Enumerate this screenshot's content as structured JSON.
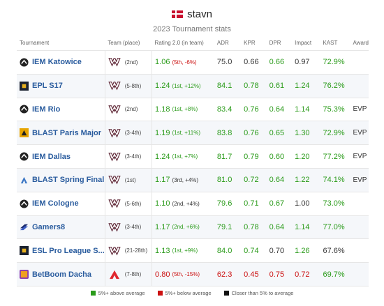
{
  "header": {
    "player": "stavn",
    "subtitle": "2023 Tournament stats",
    "flag_icon": "denmark-flag-icon"
  },
  "columns": [
    "Tournament",
    "Team (place)",
    "Rating 2.0 (in team)",
    "ADR",
    "KPR",
    "DPR",
    "Impact",
    "KAST",
    "Award"
  ],
  "colors": {
    "green": "#2a9b1a",
    "red": "#cc1111",
    "black": "#333333",
    "link": "#2a5c9e"
  },
  "rows": [
    {
      "tournament": "IEM Katowice",
      "icon": "iem-icon",
      "team_logo": "heroic-logo",
      "place": "(2nd)",
      "rating": "1.06",
      "rating_sub": "(5th, -6%)",
      "rating_color": "green",
      "rating_sub_color": "red",
      "adr": "75.0",
      "adr_color": "black",
      "kpr": "0.66",
      "kpr_color": "black",
      "dpr": "0.66",
      "dpr_color": "green",
      "impact": "0.97",
      "impact_color": "black",
      "kast": "72.9%",
      "kast_color": "green",
      "award": ""
    },
    {
      "tournament": "EPL S17",
      "icon": "esl-pro-league-icon",
      "team_logo": "heroic-logo",
      "place": "(5-8th)",
      "rating": "1.24",
      "rating_sub": "(1st, +12%)",
      "rating_color": "green",
      "rating_sub_color": "green",
      "adr": "84.1",
      "adr_color": "green",
      "kpr": "0.78",
      "kpr_color": "green",
      "dpr": "0.61",
      "dpr_color": "green",
      "impact": "1.24",
      "impact_color": "green",
      "kast": "76.2%",
      "kast_color": "green",
      "award": ""
    },
    {
      "tournament": "IEM Rio",
      "icon": "iem-icon",
      "team_logo": "heroic-logo",
      "place": "(2nd)",
      "rating": "1.18",
      "rating_sub": "(1st, +8%)",
      "rating_color": "green",
      "rating_sub_color": "green",
      "adr": "83.4",
      "adr_color": "green",
      "kpr": "0.76",
      "kpr_color": "green",
      "dpr": "0.64",
      "dpr_color": "green",
      "impact": "1.14",
      "impact_color": "green",
      "kast": "75.3%",
      "kast_color": "green",
      "award": "EVP"
    },
    {
      "tournament": "BLAST Paris Major",
      "icon": "blast-major-icon",
      "team_logo": "heroic-logo",
      "place": "(3-4th)",
      "rating": "1.19",
      "rating_sub": "(1st, +11%)",
      "rating_color": "green",
      "rating_sub_color": "green",
      "adr": "83.8",
      "adr_color": "green",
      "kpr": "0.76",
      "kpr_color": "green",
      "dpr": "0.65",
      "dpr_color": "green",
      "impact": "1.30",
      "impact_color": "green",
      "kast": "72.9%",
      "kast_color": "green",
      "award": "EVP"
    },
    {
      "tournament": "IEM Dallas",
      "icon": "iem-icon",
      "team_logo": "heroic-logo",
      "place": "(3-4th)",
      "rating": "1.24",
      "rating_sub": "(1st, +7%)",
      "rating_color": "green",
      "rating_sub_color": "green",
      "adr": "81.7",
      "adr_color": "green",
      "kpr": "0.79",
      "kpr_color": "green",
      "dpr": "0.60",
      "dpr_color": "green",
      "impact": "1.20",
      "impact_color": "green",
      "kast": "77.2%",
      "kast_color": "green",
      "award": "EVP"
    },
    {
      "tournament": "BLAST Spring Final",
      "icon": "blast-icon",
      "team_logo": "heroic-logo",
      "place": "(1st)",
      "rating": "1.17",
      "rating_sub": "(3rd, +4%)",
      "rating_color": "green",
      "rating_sub_color": "black",
      "adr": "81.0",
      "adr_color": "green",
      "kpr": "0.72",
      "kpr_color": "green",
      "dpr": "0.64",
      "dpr_color": "green",
      "impact": "1.22",
      "impact_color": "green",
      "kast": "74.1%",
      "kast_color": "green",
      "award": "EVP"
    },
    {
      "tournament": "IEM Cologne",
      "icon": "iem-icon",
      "team_logo": "heroic-logo",
      "place": "(5-6th)",
      "rating": "1.10",
      "rating_sub": "(2nd, +4%)",
      "rating_color": "green",
      "rating_sub_color": "black",
      "adr": "79.6",
      "adr_color": "green",
      "kpr": "0.71",
      "kpr_color": "green",
      "dpr": "0.67",
      "dpr_color": "green",
      "impact": "1.00",
      "impact_color": "black",
      "kast": "73.0%",
      "kast_color": "green",
      "award": ""
    },
    {
      "tournament": "Gamers8",
      "icon": "gamers8-icon",
      "team_logo": "heroic-logo",
      "place": "(3-4th)",
      "rating": "1.17",
      "rating_sub": "(2nd, +6%)",
      "rating_color": "green",
      "rating_sub_color": "green",
      "adr": "79.1",
      "adr_color": "green",
      "kpr": "0.78",
      "kpr_color": "green",
      "dpr": "0.64",
      "dpr_color": "green",
      "impact": "1.14",
      "impact_color": "green",
      "kast": "77.0%",
      "kast_color": "green",
      "award": ""
    },
    {
      "tournament": "ESL Pro League S...",
      "icon": "esl-pro-league-icon",
      "team_logo": "heroic-logo",
      "place": "(21-28th)",
      "rating": "1.13",
      "rating_sub": "(1st, +9%)",
      "rating_color": "green",
      "rating_sub_color": "green",
      "adr": "84.0",
      "adr_color": "green",
      "kpr": "0.74",
      "kpr_color": "green",
      "dpr": "0.70",
      "dpr_color": "black",
      "impact": "1.26",
      "impact_color": "green",
      "kast": "67.6%",
      "kast_color": "black",
      "award": ""
    },
    {
      "tournament": "BetBoom Dacha",
      "icon": "betboom-icon",
      "team_logo": "astralis-logo",
      "place": "(7-8th)",
      "rating": "0.80",
      "rating_sub": "(5th, -15%)",
      "rating_color": "red",
      "rating_sub_color": "red",
      "adr": "62.3",
      "adr_color": "red",
      "kpr": "0.45",
      "kpr_color": "red",
      "dpr": "0.75",
      "dpr_color": "red",
      "impact": "0.72",
      "impact_color": "red",
      "kast": "69.7%",
      "kast_color": "green",
      "award": ""
    }
  ],
  "legend": [
    {
      "label": "5%+ above average",
      "color": "#2a9b1a"
    },
    {
      "label": "5%+ below average",
      "color": "#cc1111"
    },
    {
      "label": "Closer than 5% to average",
      "color": "#111111"
    }
  ]
}
